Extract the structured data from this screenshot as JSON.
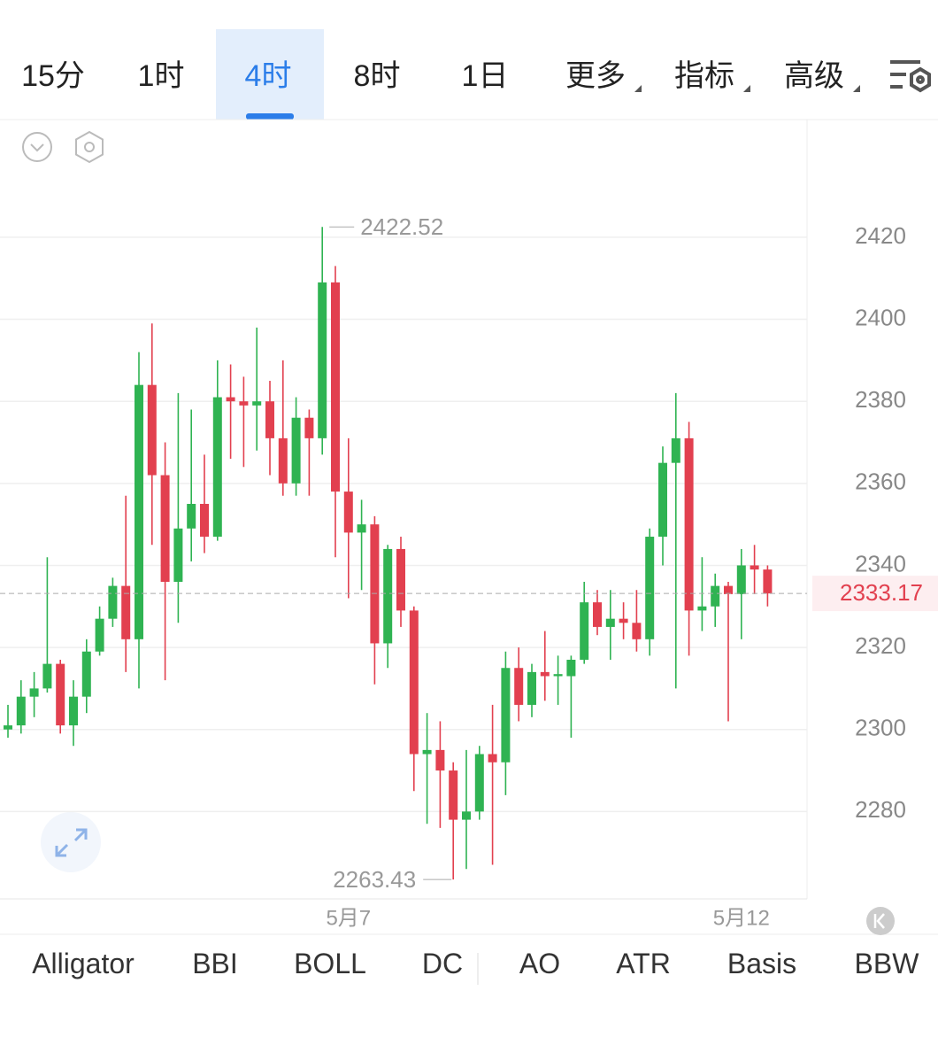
{
  "tabs": [
    "15分",
    "1时",
    "4时",
    "8时",
    "1日",
    "更多",
    "指标",
    "高级"
  ],
  "selected_tab": 2,
  "chart_data": {
    "type": "candlestick",
    "categories": [
      null,
      null,
      null,
      null,
      null,
      null,
      null,
      null,
      null,
      null,
      null,
      null,
      null,
      null,
      null,
      null,
      null,
      null,
      null,
      null,
      null,
      null,
      null,
      null,
      null,
      null,
      "5月7",
      null,
      null,
      null,
      null,
      null,
      null,
      null,
      null,
      null,
      null,
      null,
      null,
      null,
      null,
      null,
      null,
      null,
      null,
      null,
      null,
      null,
      null,
      null,
      null,
      null,
      null,
      null,
      null,
      null,
      "5月12",
      null,
      null
    ],
    "open": [
      2300,
      2301,
      2308,
      2310,
      2316,
      2301,
      2308,
      2319,
      2327,
      2335,
      2322,
      2384,
      2362,
      2336,
      2349,
      2355,
      2347,
      2381,
      2380,
      2379,
      2380,
      2371,
      2360,
      2376,
      2371,
      2409,
      2358,
      2348,
      2350,
      2321,
      2344,
      2329,
      2294,
      2295,
      2290,
      2278,
      2280,
      2294,
      2292,
      2315,
      2306,
      2314,
      2313,
      2313,
      2317,
      2331,
      2325,
      2327,
      2326,
      2322,
      2347,
      2365,
      2371,
      2329,
      2330,
      2335,
      2333,
      2340,
      2339
    ],
    "high": [
      2306,
      2312,
      2314,
      2342,
      2317,
      2312,
      2322,
      2330,
      2337,
      2357,
      2392,
      2399,
      2370,
      2382,
      2378,
      2367,
      2390,
      2389,
      2386,
      2398,
      2385,
      2390,
      2381,
      2378,
      2422.52,
      2413,
      2371,
      2356,
      2352,
      2345,
      2347,
      2330,
      2304,
      2302,
      2292,
      2295,
      2296,
      2306,
      2319,
      2320,
      2316,
      2324,
      2318,
      2318,
      2336,
      2334,
      2334,
      2331,
      2334,
      2349,
      2369,
      2382,
      2375,
      2342,
      2338,
      2336,
      2344,
      2345,
      2340
    ],
    "low": [
      2298,
      2299,
      2303,
      2309,
      2299,
      2296,
      2304,
      2318,
      2325,
      2314,
      2310,
      2345,
      2312,
      2326,
      2341,
      2343,
      2346,
      2366,
      2364,
      2368,
      2362,
      2357,
      2357,
      2357,
      2367,
      2342,
      2332,
      2334,
      2311,
      2315,
      2325,
      2285,
      2277,
      2276,
      2263.43,
      2266,
      2278,
      2267,
      2284,
      2302,
      2303,
      2307,
      2306,
      2298,
      2316,
      2323,
      2317,
      2322,
      2319,
      2318,
      2340,
      2310,
      2318,
      2324,
      2325,
      2302,
      2322,
      2333,
      2330
    ],
    "close": [
      2301,
      2308,
      2310,
      2316,
      2301,
      2308,
      2319,
      2327,
      2335,
      2322,
      2384,
      2362,
      2336,
      2349,
      2355,
      2347,
      2381,
      2380,
      2379,
      2380,
      2371,
      2360,
      2376,
      2371,
      2409,
      2358,
      2348,
      2350,
      2321,
      2344,
      2329,
      2294,
      2295,
      2290,
      2278,
      2280,
      2294,
      2292,
      2315,
      2306,
      2314,
      2313,
      2313.5,
      2317,
      2331,
      2325,
      2327,
      2326,
      2322,
      2347,
      2365,
      2371,
      2329,
      2330,
      2335,
      2333,
      2340,
      2339,
      2333.17
    ],
    "up_color": "#2fb352",
    "down_color": "#e2404f",
    "ylim": [
      2258.7,
      2448.7
    ],
    "yticks": [
      2280,
      2300,
      2320,
      2340,
      2360,
      2380,
      2400,
      2420
    ],
    "grid": true
  },
  "indicators": [
    "Alligator",
    "BBI",
    "BOLL",
    "DC",
    "AO",
    "ATR",
    "Basis",
    "BBW"
  ]
}
